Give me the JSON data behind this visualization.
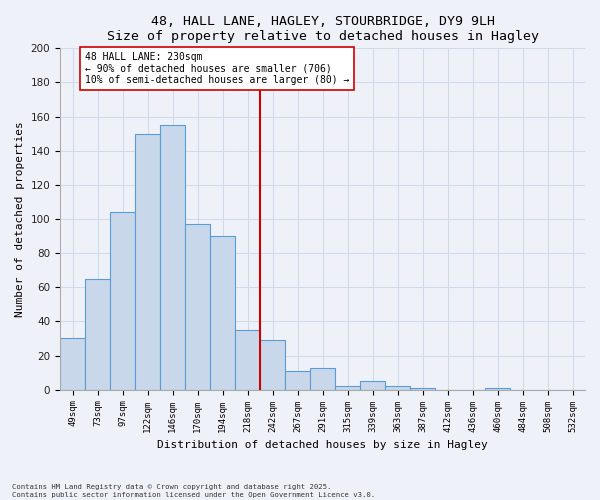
{
  "title": "48, HALL LANE, HAGLEY, STOURBRIDGE, DY9 9LH",
  "subtitle": "Size of property relative to detached houses in Hagley",
  "xlabel": "Distribution of detached houses by size in Hagley",
  "ylabel": "Number of detached properties",
  "bar_labels": [
    "49sqm",
    "73sqm",
    "97sqm",
    "122sqm",
    "146sqm",
    "170sqm",
    "194sqm",
    "218sqm",
    "242sqm",
    "267sqm",
    "291sqm",
    "315sqm",
    "339sqm",
    "363sqm",
    "387sqm",
    "412sqm",
    "436sqm",
    "460sqm",
    "484sqm",
    "508sqm",
    "532sqm"
  ],
  "bar_heights": [
    30,
    65,
    104,
    150,
    155,
    97,
    90,
    35,
    29,
    11,
    13,
    2,
    5,
    2,
    1,
    0,
    0,
    1,
    0,
    0,
    0
  ],
  "bar_color": "#c8d8ea",
  "bar_edge_color": "#5b9bd5",
  "vline_color": "#cc0000",
  "annotation_text": "48 HALL LANE: 230sqm\n← 90% of detached houses are smaller (706)\n10% of semi-detached houses are larger (80) →",
  "annotation_box_color": "#ffffff",
  "annotation_box_edge": "#cc0000",
  "ylim": [
    0,
    200
  ],
  "yticks": [
    0,
    20,
    40,
    60,
    80,
    100,
    120,
    140,
    160,
    180,
    200
  ],
  "grid_color": "#d0daea",
  "background_color": "#eef2f8",
  "footer1": "Contains HM Land Registry data © Crown copyright and database right 2025.",
  "footer2": "Contains public sector information licensed under the Open Government Licence v3.0."
}
